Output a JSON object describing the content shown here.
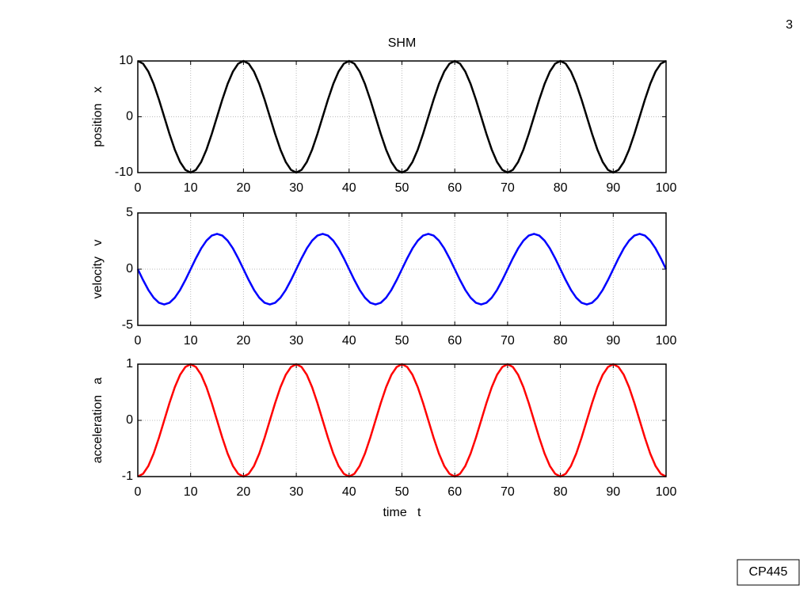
{
  "page_number": "3",
  "footer_label": "CP445",
  "chart_data": [
    {
      "type": "line",
      "title": "SHM",
      "ylabel": "position   x",
      "color": "#000000",
      "grid": true,
      "xlim": [
        0,
        100
      ],
      "ylim": [
        -10,
        10
      ],
      "xticks": [
        0,
        10,
        20,
        30,
        40,
        50,
        60,
        70,
        80,
        90,
        100
      ],
      "yticks": [
        -10,
        0,
        10
      ],
      "x": [
        0,
        1,
        2,
        3,
        4,
        5,
        6,
        7,
        8,
        9,
        10,
        11,
        12,
        13,
        14,
        15,
        16,
        17,
        18,
        19,
        20,
        21,
        22,
        23,
        24,
        25,
        26,
        27,
        28,
        29,
        30,
        31,
        32,
        33,
        34,
        35,
        36,
        37,
        38,
        39,
        40,
        41,
        42,
        43,
        44,
        45,
        46,
        47,
        48,
        49,
        50,
        51,
        52,
        53,
        54,
        55,
        56,
        57,
        58,
        59,
        60,
        61,
        62,
        63,
        64,
        65,
        66,
        67,
        68,
        69,
        70,
        71,
        72,
        73,
        74,
        75,
        76,
        77,
        78,
        79,
        80,
        81,
        82,
        83,
        84,
        85,
        86,
        87,
        88,
        89,
        90,
        91,
        92,
        93,
        94,
        95,
        96,
        97,
        98,
        99,
        100
      ],
      "values": [
        10,
        9.51,
        8.09,
        5.88,
        3.09,
        0,
        -3.09,
        -5.88,
        -8.09,
        -9.51,
        -10,
        -9.51,
        -8.09,
        -5.88,
        -3.09,
        0,
        3.09,
        5.88,
        8.09,
        9.51,
        10,
        9.51,
        8.09,
        5.88,
        3.09,
        0,
        -3.09,
        -5.88,
        -8.09,
        -9.51,
        -10,
        -9.51,
        -8.09,
        -5.88,
        -3.09,
        0,
        3.09,
        5.88,
        8.09,
        9.51,
        10,
        9.51,
        8.09,
        5.88,
        3.09,
        0,
        -3.09,
        -5.88,
        -8.09,
        -9.51,
        -10,
        -9.51,
        -8.09,
        -5.88,
        -3.09,
        0,
        3.09,
        5.88,
        8.09,
        9.51,
        10,
        9.51,
        8.09,
        5.88,
        3.09,
        0,
        -3.09,
        -5.88,
        -8.09,
        -9.51,
        -10,
        -9.51,
        -8.09,
        -5.88,
        -3.09,
        0,
        3.09,
        5.88,
        8.09,
        9.51,
        10,
        9.51,
        8.09,
        5.88,
        3.09,
        0,
        -3.09,
        -5.88,
        -8.09,
        -9.51,
        -10,
        -9.51,
        -8.09,
        -5.88,
        -3.09,
        0,
        3.09,
        5.88,
        8.09,
        9.51,
        10
      ]
    },
    {
      "type": "line",
      "ylabel": "velocity   v",
      "color": "#0000ff",
      "grid": true,
      "xlim": [
        0,
        100
      ],
      "ylim": [
        -5,
        5
      ],
      "xticks": [
        0,
        10,
        20,
        30,
        40,
        50,
        60,
        70,
        80,
        90,
        100
      ],
      "yticks": [
        -5,
        0,
        5
      ],
      "x": [
        0,
        1,
        2,
        3,
        4,
        5,
        6,
        7,
        8,
        9,
        10,
        11,
        12,
        13,
        14,
        15,
        16,
        17,
        18,
        19,
        20,
        21,
        22,
        23,
        24,
        25,
        26,
        27,
        28,
        29,
        30,
        31,
        32,
        33,
        34,
        35,
        36,
        37,
        38,
        39,
        40,
        41,
        42,
        43,
        44,
        45,
        46,
        47,
        48,
        49,
        50,
        51,
        52,
        53,
        54,
        55,
        56,
        57,
        58,
        59,
        60,
        61,
        62,
        63,
        64,
        65,
        66,
        67,
        68,
        69,
        70,
        71,
        72,
        73,
        74,
        75,
        76,
        77,
        78,
        79,
        80,
        81,
        82,
        83,
        84,
        85,
        86,
        87,
        88,
        89,
        90,
        91,
        92,
        93,
        94,
        95,
        96,
        97,
        98,
        99,
        100
      ],
      "values": [
        0,
        -0.97,
        -1.85,
        -2.54,
        -2.99,
        -3.14,
        -2.99,
        -2.54,
        -1.85,
        -0.97,
        0,
        0.97,
        1.85,
        2.54,
        2.99,
        3.14,
        2.99,
        2.54,
        1.85,
        0.97,
        0,
        -0.97,
        -1.85,
        -2.54,
        -2.99,
        -3.14,
        -2.99,
        -2.54,
        -1.85,
        -0.97,
        0,
        0.97,
        1.85,
        2.54,
        2.99,
        3.14,
        2.99,
        2.54,
        1.85,
        0.97,
        0,
        -0.97,
        -1.85,
        -2.54,
        -2.99,
        -3.14,
        -2.99,
        -2.54,
        -1.85,
        -0.97,
        0,
        0.97,
        1.85,
        2.54,
        2.99,
        3.14,
        2.99,
        2.54,
        1.85,
        0.97,
        0,
        -0.97,
        -1.85,
        -2.54,
        -2.99,
        -3.14,
        -2.99,
        -2.54,
        -1.85,
        -0.97,
        0,
        0.97,
        1.85,
        2.54,
        2.99,
        3.14,
        2.99,
        2.54,
        1.85,
        0.97,
        0,
        -0.97,
        -1.85,
        -2.54,
        -2.99,
        -3.14,
        -2.99,
        -2.54,
        -1.85,
        -0.97,
        0,
        0.97,
        1.85,
        2.54,
        2.99,
        3.14,
        2.99,
        2.54,
        1.85,
        0.97,
        0
      ]
    },
    {
      "type": "line",
      "ylabel": "acceleration   a",
      "xlabel": "time   t",
      "color": "#ff0000",
      "grid": true,
      "xlim": [
        0,
        100
      ],
      "ylim": [
        -1,
        1
      ],
      "xticks": [
        0,
        10,
        20,
        30,
        40,
        50,
        60,
        70,
        80,
        90,
        100
      ],
      "yticks": [
        -1,
        0,
        1
      ],
      "x": [
        0,
        1,
        2,
        3,
        4,
        5,
        6,
        7,
        8,
        9,
        10,
        11,
        12,
        13,
        14,
        15,
        16,
        17,
        18,
        19,
        20,
        21,
        22,
        23,
        24,
        25,
        26,
        27,
        28,
        29,
        30,
        31,
        32,
        33,
        34,
        35,
        36,
        37,
        38,
        39,
        40,
        41,
        42,
        43,
        44,
        45,
        46,
        47,
        48,
        49,
        50,
        51,
        52,
        53,
        54,
        55,
        56,
        57,
        58,
        59,
        60,
        61,
        62,
        63,
        64,
        65,
        66,
        67,
        68,
        69,
        70,
        71,
        72,
        73,
        74,
        75,
        76,
        77,
        78,
        79,
        80,
        81,
        82,
        83,
        84,
        85,
        86,
        87,
        88,
        89,
        90,
        91,
        92,
        93,
        94,
        95,
        96,
        97,
        98,
        99,
        100
      ],
      "values": [
        -1,
        -0.95,
        -0.81,
        -0.59,
        -0.31,
        0,
        0.31,
        0.59,
        0.81,
        0.95,
        1,
        0.95,
        0.81,
        0.59,
        0.31,
        0,
        -0.31,
        -0.59,
        -0.81,
        -0.95,
        -1,
        -0.95,
        -0.81,
        -0.59,
        -0.31,
        0,
        0.31,
        0.59,
        0.81,
        0.95,
        1,
        0.95,
        0.81,
        0.59,
        0.31,
        0,
        -0.31,
        -0.59,
        -0.81,
        -0.95,
        -1,
        -0.95,
        -0.81,
        -0.59,
        -0.31,
        0,
        0.31,
        0.59,
        0.81,
        0.95,
        1,
        0.95,
        0.81,
        0.59,
        0.31,
        0,
        -0.31,
        -0.59,
        -0.81,
        -0.95,
        -1,
        -0.95,
        -0.81,
        -0.59,
        -0.31,
        0,
        0.31,
        0.59,
        0.81,
        0.95,
        1,
        0.95,
        0.81,
        0.59,
        0.31,
        0,
        -0.31,
        -0.59,
        -0.81,
        -0.95,
        -1,
        -0.95,
        -0.81,
        -0.59,
        -0.31,
        0,
        0.31,
        0.59,
        0.81,
        0.95,
        1,
        0.95,
        0.81,
        0.59,
        0.31,
        0,
        -0.31,
        -0.59,
        -0.81,
        -0.95,
        -1
      ]
    }
  ]
}
